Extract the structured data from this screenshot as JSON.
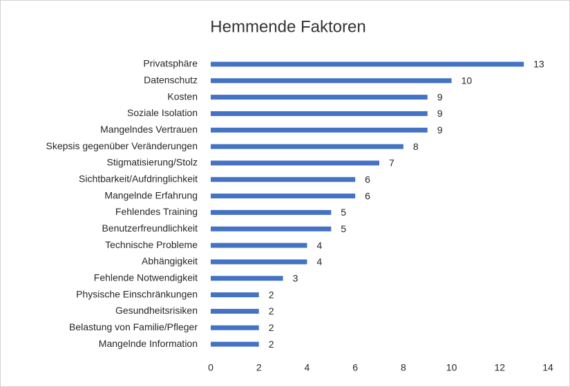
{
  "chart_data": {
    "type": "barh",
    "title": "Hemmende Faktoren",
    "categories": [
      "Privatsphäre",
      "Datenschutz",
      "Kosten",
      "Soziale Isolation",
      "Mangelndes Vertrauen",
      "Skepsis gegenüber Veränderungen",
      "Stigmatisierung/Stolz",
      "Sichtbarkeit/Aufdringlichkeit",
      "Mangelnde Erfahrung",
      "Fehlendes Training",
      "Benutzerfreundlichkeit",
      "Technische Probleme",
      "Abhängigkeit",
      "Fehlende Notwendigkeit",
      "Physische Einschränkungen",
      "Gesundheitsrisiken",
      "Belastung von Familie/Pfleger",
      "Mangelnde Information"
    ],
    "values": [
      13,
      10,
      9,
      9,
      9,
      8,
      7,
      6,
      6,
      5,
      5,
      4,
      4,
      3,
      2,
      2,
      2,
      2
    ],
    "color": "#4472c4",
    "xlim": [
      0,
      14
    ],
    "xticks": [
      0,
      2,
      4,
      6,
      8,
      10,
      12,
      14
    ],
    "grid": false
  }
}
